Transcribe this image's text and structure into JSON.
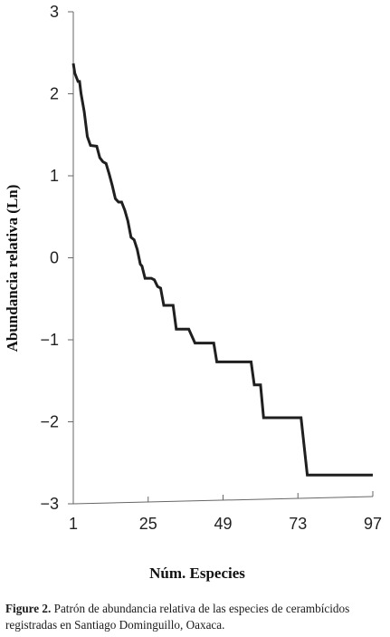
{
  "chart_data": {
    "type": "line",
    "xlabel": "Núm. Especies",
    "ylabel": "Abundancia relativa (Ln)",
    "xlim": [
      1,
      97
    ],
    "ylim": [
      -3,
      3
    ],
    "xticks": [
      1,
      25,
      49,
      73,
      97
    ],
    "yticks": [
      3,
      2,
      1,
      0,
      -1,
      -2,
      -3
    ],
    "ytick_labels": [
      "3",
      "2",
      "1",
      "0",
      "−1",
      "−2",
      "−3"
    ],
    "grid": false,
    "series": [
      {
        "x": [
          1,
          1.5,
          2.5,
          3,
          3.5,
          4.5,
          5.5,
          6.5,
          8.5,
          9.5,
          10.5,
          11.5,
          12.5,
          13.5,
          14.5,
          15.5,
          16.5,
          17.5,
          18.5,
          19.5,
          20.5,
          21.5,
          22.5,
          23,
          24,
          25,
          26,
          27,
          28,
          29,
          30,
          31,
          32,
          33,
          34,
          35,
          36,
          37,
          38,
          40,
          41,
          42,
          44,
          46,
          47,
          49,
          51,
          53,
          55,
          57,
          58,
          59,
          60,
          61,
          62,
          63,
          64,
          66,
          68,
          70,
          72,
          74,
          76,
          76.5,
          80,
          85,
          90,
          95,
          97
        ],
        "y": [
          2.37,
          2.25,
          2.15,
          2.15,
          2.0,
          1.78,
          1.48,
          1.37,
          1.36,
          1.22,
          1.17,
          1.15,
          1.02,
          0.88,
          0.72,
          0.68,
          0.68,
          0.58,
          0.45,
          0.25,
          0.22,
          0.1,
          -0.08,
          -0.1,
          -0.25,
          -0.25,
          -0.25,
          -0.27,
          -0.35,
          -0.37,
          -0.58,
          -0.58,
          -0.58,
          -0.58,
          -0.87,
          -0.87,
          -0.87,
          -0.87,
          -0.87,
          -1.04,
          -1.04,
          -1.04,
          -1.04,
          -1.04,
          -1.27,
          -1.27,
          -1.27,
          -1.27,
          -1.27,
          -1.27,
          -1.27,
          -1.55,
          -1.55,
          -1.55,
          -1.95,
          -1.95,
          -1.95,
          -1.95,
          -1.95,
          -1.95,
          -1.95,
          -1.95,
          -2.65,
          -2.65,
          -2.65,
          -2.65,
          -2.65,
          -2.65,
          -2.65
        ]
      }
    ]
  },
  "caption": {
    "label": "Figure 2.",
    "text": " Patrón de abundancia relativa de las especies de cerambícidos registradas en Santiago Dominguillo, Oaxaca."
  }
}
